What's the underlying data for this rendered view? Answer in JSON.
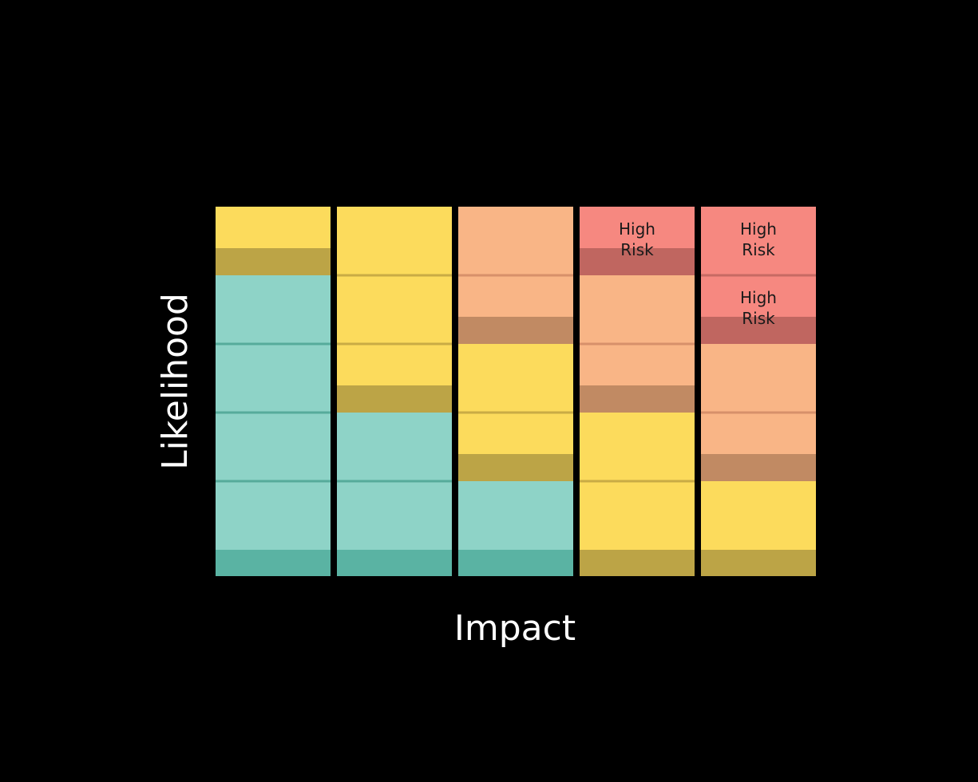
{
  "axes": {
    "x_label": "Impact",
    "y_label": "Likelihood"
  },
  "colors": {
    "background": "#000000",
    "teal": "#8ed3c7",
    "teal_shade": "#5ab3a3",
    "teal_line": "#56ab9b",
    "yellow": "#fcdb5c",
    "yellow_shade": "#bca446",
    "yellow_line": "#c9ab45",
    "orange": "#f9b586",
    "orange_shade": "#c18a63",
    "orange_line": "#d7906a",
    "red": "#f68880",
    "red_shade": "#c06660",
    "red_line": "#c76a63",
    "cell_text": "#1a1a1a",
    "axis_text": "#ffffff"
  },
  "columns": [
    {
      "impact": 1,
      "cells": [
        {
          "likelihood": 1,
          "level": "teal",
          "label": ""
        },
        {
          "likelihood": 2,
          "level": "teal",
          "label": ""
        },
        {
          "likelihood": 3,
          "level": "teal",
          "label": ""
        },
        {
          "likelihood": 4,
          "level": "teal",
          "label": ""
        },
        {
          "likelihood": 5,
          "level": "yellow",
          "label": ""
        }
      ]
    },
    {
      "impact": 2,
      "cells": [
        {
          "likelihood": 1,
          "level": "teal",
          "label": ""
        },
        {
          "likelihood": 2,
          "level": "teal",
          "label": ""
        },
        {
          "likelihood": 3,
          "level": "yellow",
          "label": ""
        },
        {
          "likelihood": 4,
          "level": "yellow",
          "label": ""
        },
        {
          "likelihood": 5,
          "level": "yellow",
          "label": ""
        }
      ]
    },
    {
      "impact": 3,
      "cells": [
        {
          "likelihood": 1,
          "level": "teal",
          "label": ""
        },
        {
          "likelihood": 2,
          "level": "yellow",
          "label": ""
        },
        {
          "likelihood": 3,
          "level": "yellow",
          "label": ""
        },
        {
          "likelihood": 4,
          "level": "orange",
          "label": ""
        },
        {
          "likelihood": 5,
          "level": "orange",
          "label": ""
        }
      ]
    },
    {
      "impact": 4,
      "cells": [
        {
          "likelihood": 1,
          "level": "yellow",
          "label": ""
        },
        {
          "likelihood": 2,
          "level": "yellow",
          "label": ""
        },
        {
          "likelihood": 3,
          "level": "orange",
          "label": ""
        },
        {
          "likelihood": 4,
          "level": "orange",
          "label": ""
        },
        {
          "likelihood": 5,
          "level": "red",
          "label": "High\nRisk"
        }
      ]
    },
    {
      "impact": 5,
      "cells": [
        {
          "likelihood": 1,
          "level": "yellow",
          "label": ""
        },
        {
          "likelihood": 2,
          "level": "orange",
          "label": ""
        },
        {
          "likelihood": 3,
          "level": "orange",
          "label": ""
        },
        {
          "likelihood": 4,
          "level": "red",
          "label": "High\nRisk"
        },
        {
          "likelihood": 5,
          "level": "red",
          "label": "High\nRisk"
        }
      ]
    }
  ]
}
